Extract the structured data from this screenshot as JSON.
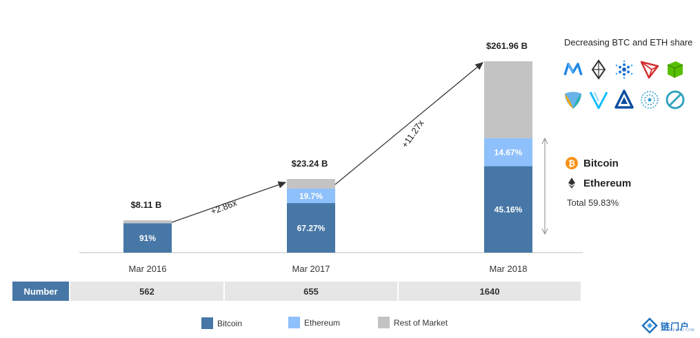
{
  "chart_data": {
    "type": "bar",
    "stacked": true,
    "categories": [
      "Mar 2016",
      "Mar 2017",
      "Mar 2018"
    ],
    "totals": [
      8.11,
      23.24,
      261.96
    ],
    "total_labels": [
      "$8.11 B",
      "$23.24 B",
      "$261.96 B"
    ],
    "series": [
      {
        "name": "Bitcoin",
        "color": "#4777a6",
        "shares": [
          91,
          67.27,
          45.16
        ],
        "labels": [
          "91%",
          "67.27%",
          "45.16%"
        ]
      },
      {
        "name": "Ethereum",
        "color": "#8ec0fb",
        "shares": [
          0,
          19.7,
          14.67
        ],
        "labels": [
          "",
          "19.7%",
          "14.67%"
        ]
      },
      {
        "name": "Rest of Market",
        "color": "#c3c3c3",
        "shares": [
          9,
          13.03,
          40.17
        ],
        "labels": [
          "",
          "",
          ""
        ]
      }
    ],
    "growth_arrows": [
      {
        "from": "Mar 2016",
        "to": "Mar 2017",
        "label": "+2.86x"
      },
      {
        "from": "Mar 2017",
        "to": "Mar 2018",
        "label": "+11.27x"
      }
    ]
  },
  "table": {
    "header": "Number",
    "values": [
      "562",
      "655",
      "1640"
    ]
  },
  "legend": {
    "items": [
      {
        "label": "Bitcoin",
        "color": "#4777a6"
      },
      {
        "label": "Ethereum",
        "color": "#8ec0fb"
      },
      {
        "label": "Rest of Market",
        "color": "#c3c3c3"
      }
    ]
  },
  "sidebar": {
    "title": "Decreasing BTC and ETH share",
    "icons": [
      "iota-icon",
      "aeternity-icon",
      "cardano-icon",
      "tron-icon",
      "neo-icon",
      "nem-icon",
      "vechain-icon",
      "lisk-icon",
      "qtum-icon",
      "ontology-icon"
    ],
    "bitcoin_label": "Bitcoin",
    "ethereum_label": "Ethereum",
    "total": "Total 59.83%",
    "bitcoin_color": "#f7931a"
  },
  "watermark": {
    "name": "链门户",
    "sub": "LIANMENHU.COM"
  }
}
